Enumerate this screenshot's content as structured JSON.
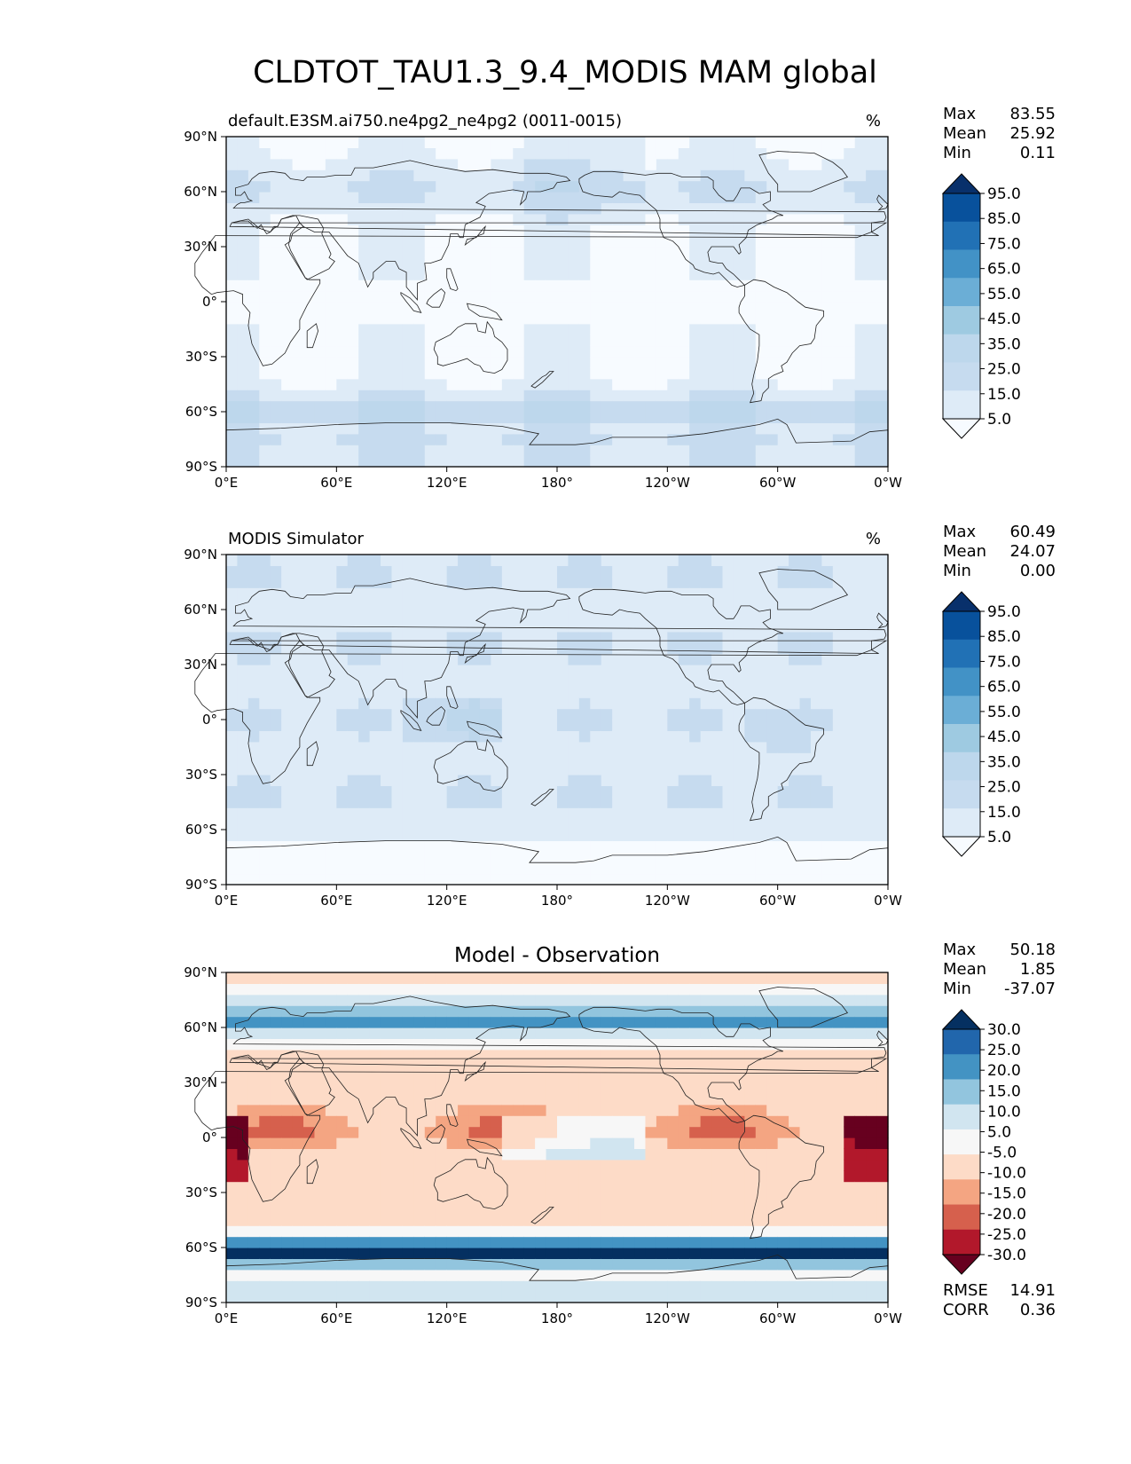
{
  "page_title": "CLDTOT_TAU1.3_9.4_MODIS MAM global",
  "lon_ticks": [
    "0°E",
    "60°E",
    "120°E",
    "180°",
    "120°W",
    "60°W",
    "0°W"
  ],
  "lat_ticks": [
    "90°N",
    "60°N",
    "30°N",
    "0°",
    "30°S",
    "60°S",
    "90°S"
  ],
  "chart_data": [
    {
      "type": "heatmap",
      "title": "default.E3SM.ai750.ne4pg2_ne4pg2 (0011-0015)",
      "units": "%",
      "stats": [
        {
          "label": "Max",
          "value": "83.55"
        },
        {
          "label": "Mean",
          "value": "25.92"
        },
        {
          "label": "Min",
          "value": "0.11"
        }
      ],
      "colorbar": {
        "labels": [
          "95.0",
          "85.0",
          "75.0",
          "65.0",
          "55.0",
          "45.0",
          "35.0",
          "25.0",
          "15.0",
          "5.0"
        ],
        "colors": [
          "#08306b",
          "#08519c",
          "#2171b5",
          "#4292c6",
          "#6baed6",
          "#9ecae1",
          "#bdd7ec",
          "#c6dbef",
          "#deebf7",
          "#f7fbff"
        ]
      },
      "xlim": [
        0,
        360
      ],
      "ylim": [
        -90,
        90
      ],
      "pattern": "model"
    },
    {
      "type": "heatmap",
      "title": "MODIS Simulator",
      "units": "%",
      "stats": [
        {
          "label": "Max",
          "value": "60.49"
        },
        {
          "label": "Mean",
          "value": "24.07"
        },
        {
          "label": "Min",
          "value": "0.00"
        }
      ],
      "colorbar": {
        "labels": [
          "95.0",
          "85.0",
          "75.0",
          "65.0",
          "55.0",
          "45.0",
          "35.0",
          "25.0",
          "15.0",
          "5.0"
        ],
        "colors": [
          "#08306b",
          "#08519c",
          "#2171b5",
          "#4292c6",
          "#6baed6",
          "#9ecae1",
          "#bdd7ec",
          "#c6dbef",
          "#deebf7",
          "#f7fbff"
        ]
      },
      "xlim": [
        0,
        360
      ],
      "ylim": [
        -90,
        90
      ],
      "pattern": "obs"
    },
    {
      "type": "heatmap",
      "title": "Model - Observation",
      "units": "",
      "stats": [
        {
          "label": "Max",
          "value": "50.18"
        },
        {
          "label": "Mean",
          "value": "1.85"
        },
        {
          "label": "Min",
          "value": "-37.07"
        }
      ],
      "colorbar": {
        "labels": [
          "30.0",
          "25.0",
          "20.0",
          "15.0",
          "10.0",
          "5.0",
          "-5.0",
          "-10.0",
          "-15.0",
          "-20.0",
          "-25.0",
          "-30.0"
        ],
        "colors": [
          "#053061",
          "#2166ac",
          "#4393c3",
          "#92c5de",
          "#d1e5f0",
          "#f7f7f7",
          "#fddbc7",
          "#f4a582",
          "#d6604d",
          "#b2182b",
          "#67001f"
        ]
      },
      "extra_stats": [
        {
          "label": "RMSE",
          "value": "14.91"
        },
        {
          "label": "CORR",
          "value": "0.36"
        }
      ],
      "xlim": [
        0,
        360
      ],
      "ylim": [
        -90,
        90
      ],
      "pattern": "diff"
    }
  ]
}
